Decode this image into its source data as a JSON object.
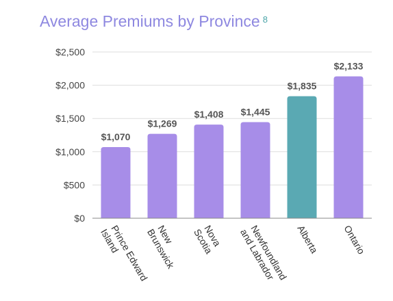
{
  "chart_data": {
    "type": "bar",
    "title": "Average Premiums by Province",
    "title_footnote": "8",
    "categories": [
      [
        "Prince Edward",
        "Island"
      ],
      [
        "New",
        "Brunswick"
      ],
      [
        "Nova",
        "Scotia"
      ],
      [
        "Newfoundland",
        "and Labrador"
      ],
      [
        "Alberta"
      ],
      [
        "Ontario"
      ]
    ],
    "values": [
      1070,
      1269,
      1408,
      1445,
      1835,
      2133
    ],
    "data_labels": [
      "$1,070",
      "$1,269",
      "$1,408",
      "$1,445",
      "$1,835",
      "$2,133"
    ],
    "ylim": [
      0,
      2500
    ],
    "yticks": [
      0,
      500,
      1000,
      1500,
      2000,
      2500
    ],
    "ytick_labels": [
      "$0",
      "$500",
      "$1,000",
      "$1,500",
      "$2,000",
      "$2,500"
    ],
    "xlabel": "",
    "ylabel": "",
    "grid": true,
    "colors": {
      "bar": "#a78de8",
      "highlight": "#5aa9b3",
      "highlight_index": 4,
      "title": "#8e88e0",
      "footnote": "#4aa5a8",
      "grid": "#dddddd",
      "axis": "#888888"
    }
  }
}
